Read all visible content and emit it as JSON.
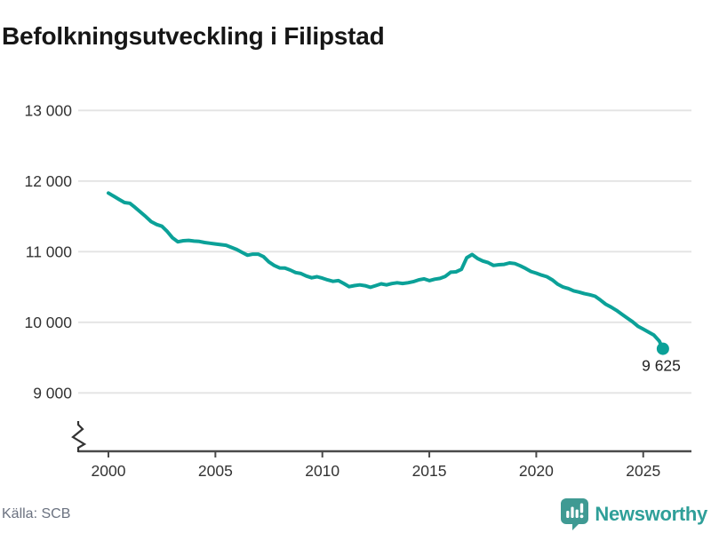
{
  "header": {
    "title": "Befolkningsutveckling i Filipstad"
  },
  "footer": {
    "source": "Källa: SCB",
    "brand": "Newsworthy"
  },
  "colors": {
    "line": "#0ba198",
    "grid": "#e3e3e3",
    "axis": "#4a4a4a",
    "tick_label": "#333333",
    "title": "#161616",
    "source": "#6b7280",
    "brand_text": "#2f9f99",
    "brand_icon": "#3f9a93",
    "end_label": "#222222"
  },
  "chart_data": {
    "type": "line",
    "title": "Befolkningsutveckling i Filipstad",
    "source": "Källa: SCB",
    "xlabel": "",
    "ylabel": "",
    "x_ticks": [
      2000,
      2005,
      2010,
      2015,
      2020,
      2025
    ],
    "y_ticks": [
      9000,
      10000,
      11000,
      12000,
      13000
    ],
    "y_tick_labels": [
      "9 000",
      "10 000",
      "11 000",
      "12 000",
      "13 000"
    ],
    "x_range": [
      2000,
      2025.92
    ],
    "y_axis_break": true,
    "grid": "horizontal",
    "legend": "none",
    "end_label": "9 625",
    "end_value": 9625,
    "series": [
      {
        "name": "Befolkning",
        "points": [
          [
            2000.0,
            11830
          ],
          [
            2000.25,
            11785
          ],
          [
            2000.5,
            11740
          ],
          [
            2000.75,
            11695
          ],
          [
            2001.0,
            11685
          ],
          [
            2001.25,
            11625
          ],
          [
            2001.5,
            11560
          ],
          [
            2001.75,
            11495
          ],
          [
            2002.0,
            11425
          ],
          [
            2002.25,
            11385
          ],
          [
            2002.5,
            11360
          ],
          [
            2002.75,
            11285
          ],
          [
            2003.0,
            11195
          ],
          [
            2003.25,
            11140
          ],
          [
            2003.5,
            11155
          ],
          [
            2003.75,
            11160
          ],
          [
            2004.0,
            11150
          ],
          [
            2004.25,
            11145
          ],
          [
            2004.5,
            11130
          ],
          [
            2004.75,
            11120
          ],
          [
            2005.0,
            11110
          ],
          [
            2005.25,
            11100
          ],
          [
            2005.5,
            11090
          ],
          [
            2005.75,
            11060
          ],
          [
            2006.0,
            11030
          ],
          [
            2006.25,
            10990
          ],
          [
            2006.5,
            10950
          ],
          [
            2006.75,
            10965
          ],
          [
            2007.0,
            10965
          ],
          [
            2007.25,
            10930
          ],
          [
            2007.5,
            10855
          ],
          [
            2007.75,
            10805
          ],
          [
            2008.0,
            10770
          ],
          [
            2008.25,
            10768
          ],
          [
            2008.5,
            10740
          ],
          [
            2008.75,
            10705
          ],
          [
            2009.0,
            10690
          ],
          [
            2009.25,
            10655
          ],
          [
            2009.5,
            10630
          ],
          [
            2009.75,
            10645
          ],
          [
            2010.0,
            10625
          ],
          [
            2010.25,
            10600
          ],
          [
            2010.5,
            10580
          ],
          [
            2010.75,
            10590
          ],
          [
            2011.0,
            10550
          ],
          [
            2011.25,
            10505
          ],
          [
            2011.5,
            10520
          ],
          [
            2011.75,
            10530
          ],
          [
            2012.0,
            10518
          ],
          [
            2012.25,
            10495
          ],
          [
            2012.5,
            10520
          ],
          [
            2012.75,
            10545
          ],
          [
            2013.0,
            10530
          ],
          [
            2013.25,
            10548
          ],
          [
            2013.5,
            10560
          ],
          [
            2013.75,
            10550
          ],
          [
            2014.0,
            10560
          ],
          [
            2014.25,
            10575
          ],
          [
            2014.5,
            10600
          ],
          [
            2014.75,
            10615
          ],
          [
            2015.0,
            10590
          ],
          [
            2015.25,
            10610
          ],
          [
            2015.5,
            10622
          ],
          [
            2015.75,
            10650
          ],
          [
            2016.0,
            10710
          ],
          [
            2016.25,
            10714
          ],
          [
            2016.5,
            10750
          ],
          [
            2016.75,
            10915
          ],
          [
            2017.0,
            10960
          ],
          [
            2017.25,
            10905
          ],
          [
            2017.5,
            10868
          ],
          [
            2017.75,
            10845
          ],
          [
            2018.0,
            10805
          ],
          [
            2018.25,
            10815
          ],
          [
            2018.5,
            10820
          ],
          [
            2018.75,
            10840
          ],
          [
            2019.0,
            10832
          ],
          [
            2019.25,
            10800
          ],
          [
            2019.5,
            10762
          ],
          [
            2019.75,
            10720
          ],
          [
            2020.0,
            10695
          ],
          [
            2020.25,
            10668
          ],
          [
            2020.5,
            10645
          ],
          [
            2020.75,
            10600
          ],
          [
            2021.0,
            10540
          ],
          [
            2021.25,
            10500
          ],
          [
            2021.5,
            10478
          ],
          [
            2021.75,
            10445
          ],
          [
            2022.0,
            10428
          ],
          [
            2022.25,
            10405
          ],
          [
            2022.5,
            10390
          ],
          [
            2022.75,
            10368
          ],
          [
            2023.0,
            10315
          ],
          [
            2023.25,
            10255
          ],
          [
            2023.5,
            10215
          ],
          [
            2023.75,
            10168
          ],
          [
            2024.0,
            10115
          ],
          [
            2024.25,
            10060
          ],
          [
            2024.5,
            10008
          ],
          [
            2024.75,
            9945
          ],
          [
            2025.0,
            9903
          ],
          [
            2025.25,
            9860
          ],
          [
            2025.5,
            9818
          ],
          [
            2025.75,
            9735
          ],
          [
            2025.92,
            9625
          ]
        ]
      }
    ]
  }
}
